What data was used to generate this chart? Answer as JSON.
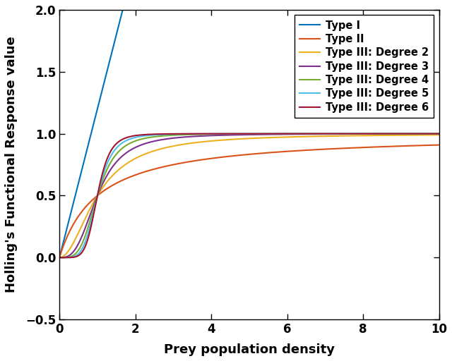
{
  "title": "",
  "xlabel": "Prey population density",
  "ylabel": "Holling's Functional Response value",
  "xlim": [
    0,
    10
  ],
  "ylim": [
    -0.5,
    2
  ],
  "xticks": [
    0,
    2,
    4,
    6,
    8,
    10
  ],
  "yticks": [
    -0.5,
    0,
    0.5,
    1,
    1.5,
    2
  ],
  "colors": {
    "type1": "#0072BD",
    "type2": "#D95319",
    "type3_2": "#EDB120",
    "type3_3": "#7E2F8E",
    "type3_4": "#77AC30",
    "type3_5": "#4DBEEE",
    "type3_6": "#A2142F"
  },
  "legend_labels": [
    "Type I",
    "Type II",
    "Type III: Degree 2",
    "Type III: Degree 3",
    "Type III: Degree 4",
    "Type III: Degree 5",
    "Type III: Degree 6"
  ],
  "linewidth": 1.5,
  "type1_slope": 1.2,
  "fig_width": 6.4,
  "fig_height": 5.12,
  "dpi": 100,
  "xlabel_fontsize": 13,
  "ylabel_fontsize": 13,
  "tick_fontsize": 12,
  "legend_fontsize": 10.5
}
